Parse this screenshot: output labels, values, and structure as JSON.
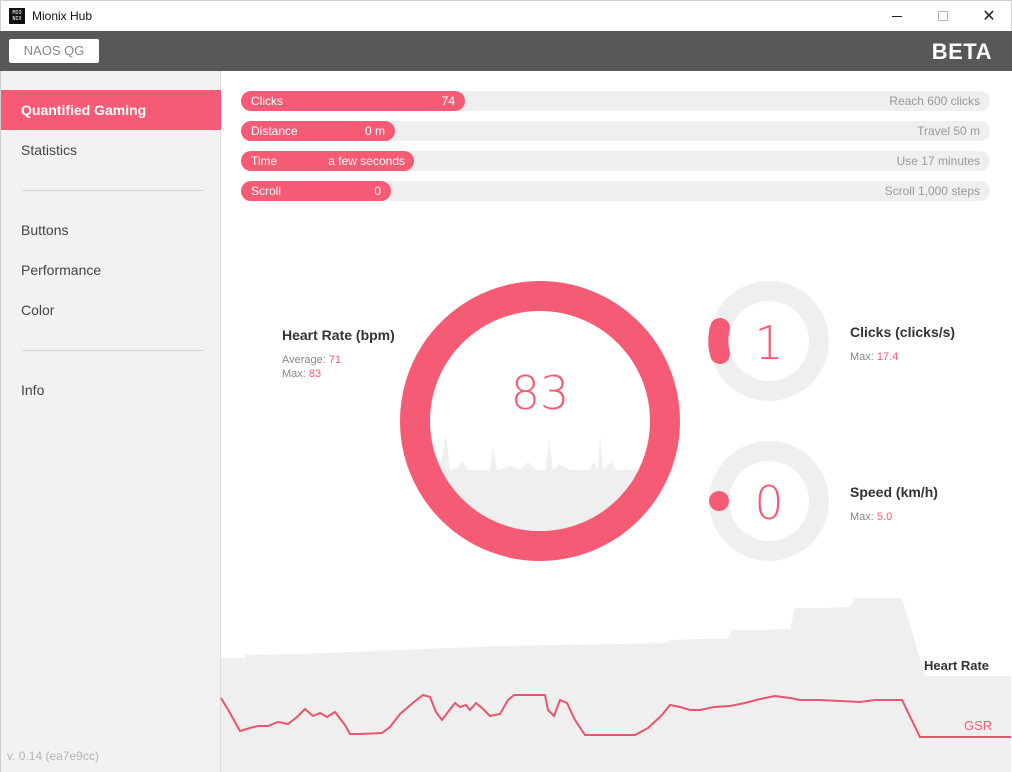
{
  "window": {
    "title": "Mionix Hub",
    "icon_text": "MIO NIX"
  },
  "header": {
    "device_label": "NAOS QG",
    "badge": "BETA"
  },
  "sidebar": {
    "items": [
      {
        "label": "Quantified Gaming",
        "active": true
      },
      {
        "label": "Statistics"
      },
      {
        "label": "Buttons"
      },
      {
        "label": "Performance"
      },
      {
        "label": "Color"
      },
      {
        "label": "Info"
      }
    ],
    "version": "v. 0.14 (ea7e9cc)"
  },
  "progress": [
    {
      "label": "Clicks",
      "value": "74",
      "goal": "Reach 600 clicks",
      "fraction": 0.123
    },
    {
      "label": "Distance",
      "value": "0 m",
      "goal": "Travel 50 m",
      "fraction": 0.0
    },
    {
      "label": "Time",
      "value": "a few seconds",
      "goal": "Use 17 minutes",
      "fraction": 0.01
    },
    {
      "label": "Scroll",
      "value": "0",
      "goal": "Scroll 1,000 steps",
      "fraction": 0.0
    }
  ],
  "heart_rate": {
    "title": "Heart Rate (bpm)",
    "average_label": "Average:",
    "average": "71",
    "max_label": "Max:",
    "max": "83",
    "current": "83"
  },
  "clicks_gauge": {
    "title": "Clicks (clicks/s)",
    "max_label": "Max:",
    "max": "17.4",
    "current": "1"
  },
  "speed_gauge": {
    "title": "Speed (km/h)",
    "max_label": "Max:",
    "max": "5.0",
    "current": "0"
  },
  "bottom_chart": {
    "hr_label": "Heart Rate",
    "gsr_label": "GSR"
  },
  "colors": {
    "accent": "#f65b75",
    "header": "#58575a",
    "sidebar": "#f2f2f2",
    "track": "#efefef"
  }
}
